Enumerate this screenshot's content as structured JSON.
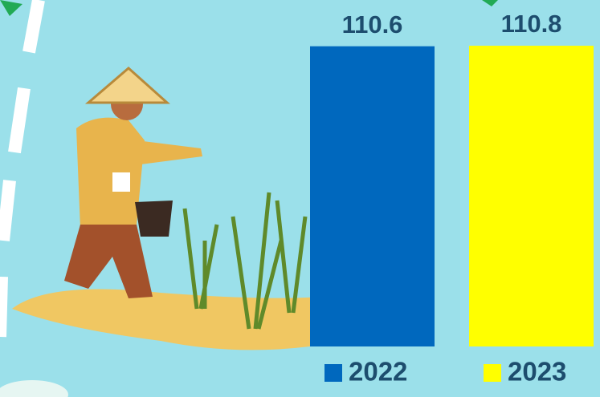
{
  "chart_data": {
    "type": "bar",
    "categories": [
      "2022",
      "2023"
    ],
    "values": [
      110.6,
      110.8
    ],
    "colors": [
      "#0068be",
      "#ffff00"
    ],
    "ylim": [
      0,
      110.8
    ]
  }
}
